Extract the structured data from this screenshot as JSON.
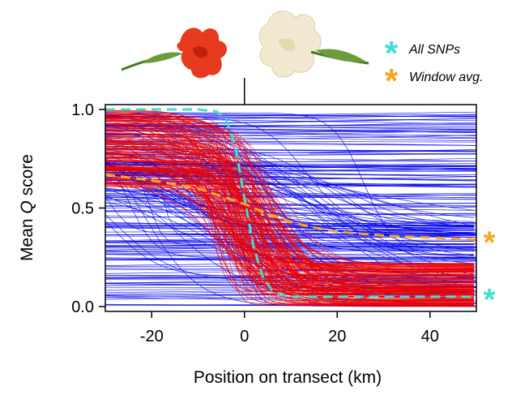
{
  "chart_data": {
    "type": "line",
    "title": "",
    "xlabel": "Position on transect (km)",
    "ylabel_prefix": "Mean ",
    "ylabel_italic": "Q",
    "ylabel_suffix": " score",
    "xlim": [
      -30,
      50
    ],
    "ylim": [
      0,
      1
    ],
    "x_ticks": [
      -20,
      0,
      20,
      40
    ],
    "x_tick_labels": [
      "-20",
      "0",
      "20",
      "40"
    ],
    "y_ticks": [
      0.0,
      0.5,
      1.0
    ],
    "y_tick_labels": [
      "0.0",
      "0.5",
      "1.0"
    ],
    "center_marker_x": 0,
    "background_clines": {
      "blue": {
        "color": "#0000ee",
        "description_count": 220
      },
      "red": {
        "color": "#ee0000",
        "center_x": 0,
        "count": 160
      }
    },
    "series": [
      {
        "name": "All SNPs",
        "color": "#40e0d0",
        "style": "dashed",
        "x": [
          -30,
          -10,
          -6,
          -4,
          -2,
          0,
          2,
          4,
          6,
          8,
          10,
          15,
          20,
          30,
          40,
          50
        ],
        "y": [
          1.0,
          1.0,
          0.99,
          0.95,
          0.82,
          0.55,
          0.3,
          0.15,
          0.08,
          0.06,
          0.05,
          0.05,
          0.05,
          0.05,
          0.05,
          0.05
        ],
        "end_marker": "*"
      },
      {
        "name": "Window avg.",
        "color": "#f5a623",
        "style": "dashed",
        "x": [
          -30,
          -20,
          -10,
          -5,
          0,
          5,
          10,
          15,
          20,
          30,
          40,
          50
        ],
        "y": [
          0.67,
          0.64,
          0.6,
          0.56,
          0.52,
          0.47,
          0.43,
          0.4,
          0.38,
          0.36,
          0.35,
          0.34
        ],
        "end_marker": "*"
      }
    ],
    "legend": {
      "placement": "top-right",
      "entries": [
        {
          "marker": "*",
          "color": "#40e0d0",
          "label": "All SNPs"
        },
        {
          "marker": "*",
          "color": "#f5a623",
          "label": "Window avg."
        }
      ]
    },
    "header_images": [
      {
        "name": "red-flower",
        "color": "#e63a1f"
      },
      {
        "name": "cream-flower",
        "color": "#f2ead0"
      }
    ]
  }
}
